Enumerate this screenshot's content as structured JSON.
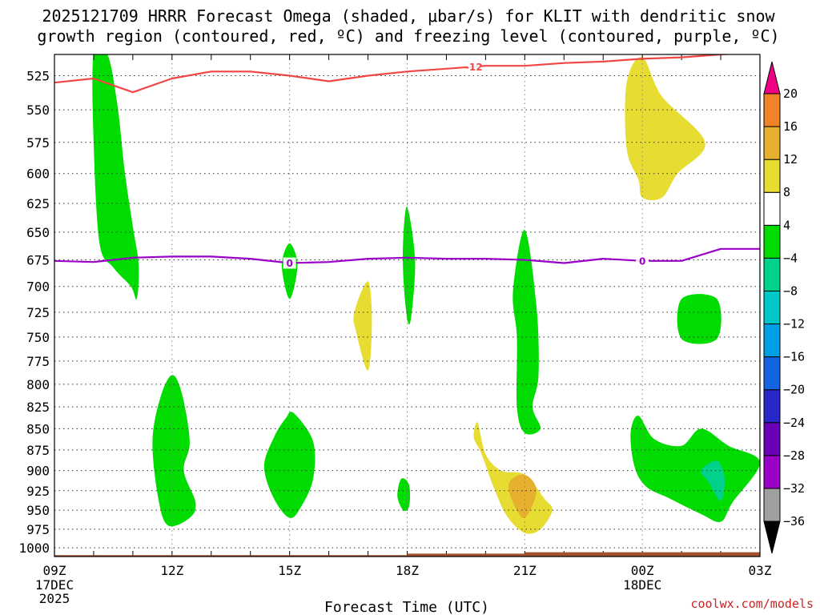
{
  "title": {
    "line1": "2025121709 HRRR Forecast Omega (shaded, μbar/s) for KLIT with dendritic snow",
    "line2": "growth region (contoured, red, ºC) and freezing level (contoured, purple, ºC)"
  },
  "credit": "coolwx.com/models",
  "chart_data": {
    "type": "heatmap",
    "title": "2025121709 HRRR Forecast Omega (shaded, μbar/s) for KLIT with dendritic snow growth region (contoured, red, ºC) and freezing level (contoured, purple, ºC)",
    "xlabel": "Forecast Time (UTC)",
    "ylabel": "",
    "x_unit": "forecast hours from 09Z 17DEC 2025",
    "xlim": [
      0,
      18
    ],
    "ylim": [
      1012,
      510
    ],
    "y_scale": "log-pressure (hPa)",
    "grid": true,
    "x_ticks": [
      {
        "x": 0,
        "l1": "09Z",
        "l2": "17DEC",
        "l3": "2025"
      },
      {
        "x": 3,
        "l1": "12Z",
        "l2": "",
        "l3": ""
      },
      {
        "x": 6,
        "l1": "15Z",
        "l2": "",
        "l3": ""
      },
      {
        "x": 9,
        "l1": "18Z",
        "l2": "",
        "l3": ""
      },
      {
        "x": 12,
        "l1": "21Z",
        "l2": "",
        "l3": ""
      },
      {
        "x": 15,
        "l1": "00Z",
        "l2": "18DEC",
        "l3": ""
      },
      {
        "x": 18,
        "l1": "03Z",
        "l2": "",
        "l3": ""
      }
    ],
    "y_ticks": [
      525,
      550,
      575,
      600,
      625,
      650,
      675,
      700,
      725,
      750,
      775,
      800,
      825,
      850,
      875,
      900,
      925,
      950,
      975,
      1000
    ],
    "colorbar": {
      "unit": "μbar/s",
      "levels": [
        -36,
        -32,
        -28,
        -24,
        -20,
        -16,
        -12,
        -8,
        -4,
        4,
        8,
        12,
        16,
        20
      ],
      "colors": [
        "#a0a0a0",
        "#9a00c8",
        "#6a00b8",
        "#2828c8",
        "#1463e0",
        "#00a0e6",
        "#00c8c8",
        "#00d28c",
        "#00dc00",
        "#ffffff",
        "#e6dc32",
        "#e6af2d",
        "#f08228",
        "#fa3c3c",
        "#f00082"
      ],
      "under_color": "#000000",
      "over_color": "#f00082"
    },
    "shaded_regions": [
      {
        "color": "#00dc00",
        "band": "-8 to -4",
        "points": [
          [
            1.0,
            510
          ],
          [
            1.35,
            510
          ],
          [
            1.6,
            545
          ],
          [
            1.8,
            600
          ],
          [
            2.0,
            645
          ],
          [
            2.15,
            680
          ],
          [
            2.1,
            712
          ],
          [
            1.95,
            700
          ],
          [
            1.5,
            682
          ],
          [
            1.15,
            660
          ],
          [
            1.0,
            575
          ]
        ]
      },
      {
        "color": "#00dc00",
        "band": "-8 to -4",
        "points": [
          [
            3.0,
            790
          ],
          [
            3.25,
            810
          ],
          [
            3.45,
            865
          ],
          [
            3.3,
            900
          ],
          [
            3.6,
            940
          ],
          [
            3.45,
            960
          ],
          [
            2.9,
            970
          ],
          [
            2.65,
            935
          ],
          [
            2.5,
            865
          ],
          [
            2.7,
            815
          ]
        ]
      },
      {
        "color": "#00dc00",
        "band": "-8 to -4",
        "points": [
          [
            6.1,
            832
          ],
          [
            6.6,
            865
          ],
          [
            6.6,
            910
          ],
          [
            6.3,
            945
          ],
          [
            6.0,
            960
          ],
          [
            5.6,
            935
          ],
          [
            5.35,
            895
          ],
          [
            5.6,
            860
          ],
          [
            5.9,
            838
          ]
        ]
      },
      {
        "color": "#00dc00",
        "band": "-8 to -4",
        "points": [
          [
            6.0,
            660
          ],
          [
            6.2,
            680
          ],
          [
            6.0,
            712
          ],
          [
            5.8,
            680
          ]
        ]
      },
      {
        "color": "#e6dc32",
        "band": "4 to 8",
        "points": [
          [
            8.0,
            695
          ],
          [
            8.1,
            735
          ],
          [
            8.0,
            785
          ],
          [
            7.7,
            745
          ],
          [
            7.65,
            725
          ]
        ]
      },
      {
        "color": "#00dc00",
        "band": "-8 to -4",
        "points": [
          [
            9.0,
            628
          ],
          [
            9.2,
            675
          ],
          [
            9.1,
            730
          ],
          [
            9.0,
            732
          ],
          [
            8.9,
            690
          ],
          [
            8.9,
            655
          ]
        ]
      },
      {
        "color": "#00dc00",
        "band": "-8 to -4",
        "points": [
          [
            8.85,
            910
          ],
          [
            9.05,
            918
          ],
          [
            9.05,
            945
          ],
          [
            8.9,
            950
          ],
          [
            8.75,
            932
          ]
        ]
      },
      {
        "color": "#00dc00",
        "band": "-8 to -4",
        "points": [
          [
            12.0,
            648
          ],
          [
            12.3,
            720
          ],
          [
            12.35,
            790
          ],
          [
            12.2,
            825
          ],
          [
            12.4,
            850
          ],
          [
            12.0,
            855
          ],
          [
            11.8,
            825
          ],
          [
            11.8,
            750
          ],
          [
            11.7,
            705
          ]
        ]
      },
      {
        "color": "#e6dc32",
        "band": "4 to 8",
        "points": [
          [
            10.8,
            843
          ],
          [
            11.0,
            880
          ],
          [
            11.4,
            900
          ],
          [
            12.0,
            905
          ],
          [
            12.5,
            935
          ],
          [
            12.7,
            950
          ],
          [
            12.4,
            975
          ],
          [
            12.0,
            980
          ],
          [
            11.55,
            958
          ],
          [
            11.2,
            920
          ],
          [
            10.9,
            880
          ],
          [
            10.7,
            860
          ]
        ]
      },
      {
        "color": "#e6af2d",
        "band": "8 to 12",
        "points": [
          [
            11.6,
            915
          ],
          [
            12.0,
            905
          ],
          [
            12.3,
            925
          ],
          [
            12.0,
            960
          ],
          [
            11.7,
            940
          ]
        ]
      },
      {
        "color": "#e6dc32",
        "band": "4 to 8",
        "points": [
          [
            15.0,
            512
          ],
          [
            15.5,
            540
          ],
          [
            16.6,
            575
          ],
          [
            15.9,
            600
          ],
          [
            15.5,
            620
          ],
          [
            15.0,
            620
          ],
          [
            14.9,
            605
          ],
          [
            14.6,
            580
          ],
          [
            14.6,
            530
          ]
        ]
      },
      {
        "color": "#00dc00",
        "band": "-8 to -4",
        "points": [
          [
            16.0,
            712
          ],
          [
            16.9,
            712
          ],
          [
            16.9,
            752
          ],
          [
            16.0,
            752
          ]
        ]
      },
      {
        "color": "#00dc00",
        "band": "-8 to -4",
        "points": [
          [
            14.9,
            835
          ],
          [
            15.3,
            862
          ],
          [
            16.0,
            870
          ],
          [
            16.5,
            850
          ],
          [
            17.2,
            870
          ],
          [
            18.0,
            890
          ],
          [
            17.3,
            940
          ],
          [
            17.0,
            965
          ],
          [
            16.5,
            955
          ],
          [
            15.7,
            935
          ],
          [
            15.1,
            920
          ],
          [
            14.8,
            895
          ],
          [
            14.7,
            855
          ]
        ]
      },
      {
        "color": "#00d28c",
        "band": "-12 to -8",
        "points": [
          [
            16.9,
            888
          ],
          [
            17.1,
            910
          ],
          [
            17.0,
            938
          ],
          [
            16.7,
            915
          ],
          [
            16.5,
            900
          ]
        ]
      }
    ],
    "contours": [
      {
        "name": "dendritic snow growth region",
        "level": -12,
        "color": "#f04646",
        "points": [
          [
            0,
            530
          ],
          [
            1,
            527
          ],
          [
            2,
            537
          ],
          [
            3,
            527
          ],
          [
            4,
            522
          ],
          [
            5,
            522
          ],
          [
            6,
            525
          ],
          [
            7,
            529
          ],
          [
            8,
            525
          ],
          [
            9,
            522
          ],
          [
            10,
            520
          ],
          [
            11,
            518
          ],
          [
            12,
            518
          ],
          [
            13,
            516
          ],
          [
            14,
            515
          ],
          [
            15,
            513
          ],
          [
            16,
            512
          ],
          [
            17,
            510
          ],
          [
            18,
            508
          ]
        ],
        "label_x": 10.7
      },
      {
        "name": "freezing level",
        "level": 0,
        "color": "#9a00c8",
        "points": [
          [
            0,
            676
          ],
          [
            1,
            677
          ],
          [
            2,
            673
          ],
          [
            3,
            672
          ],
          [
            4,
            672
          ],
          [
            5,
            674
          ],
          [
            6,
            678
          ],
          [
            7,
            677
          ],
          [
            8,
            674
          ],
          [
            9,
            673
          ],
          [
            10,
            674
          ],
          [
            11,
            674
          ],
          [
            12,
            675
          ],
          [
            13,
            678
          ],
          [
            14,
            674
          ],
          [
            15,
            676
          ],
          [
            16,
            676
          ],
          [
            17,
            665
          ],
          [
            18,
            665
          ]
        ],
        "label_xs": [
          6.0,
          15.0
        ]
      }
    ],
    "terrain": {
      "color": "#a0522d",
      "points": [
        [
          0,
          1010
        ],
        [
          9,
          1010
        ],
        [
          9,
          1008
        ],
        [
          12,
          1008
        ],
        [
          12,
          1006
        ],
        [
          18,
          1006
        ]
      ]
    }
  }
}
